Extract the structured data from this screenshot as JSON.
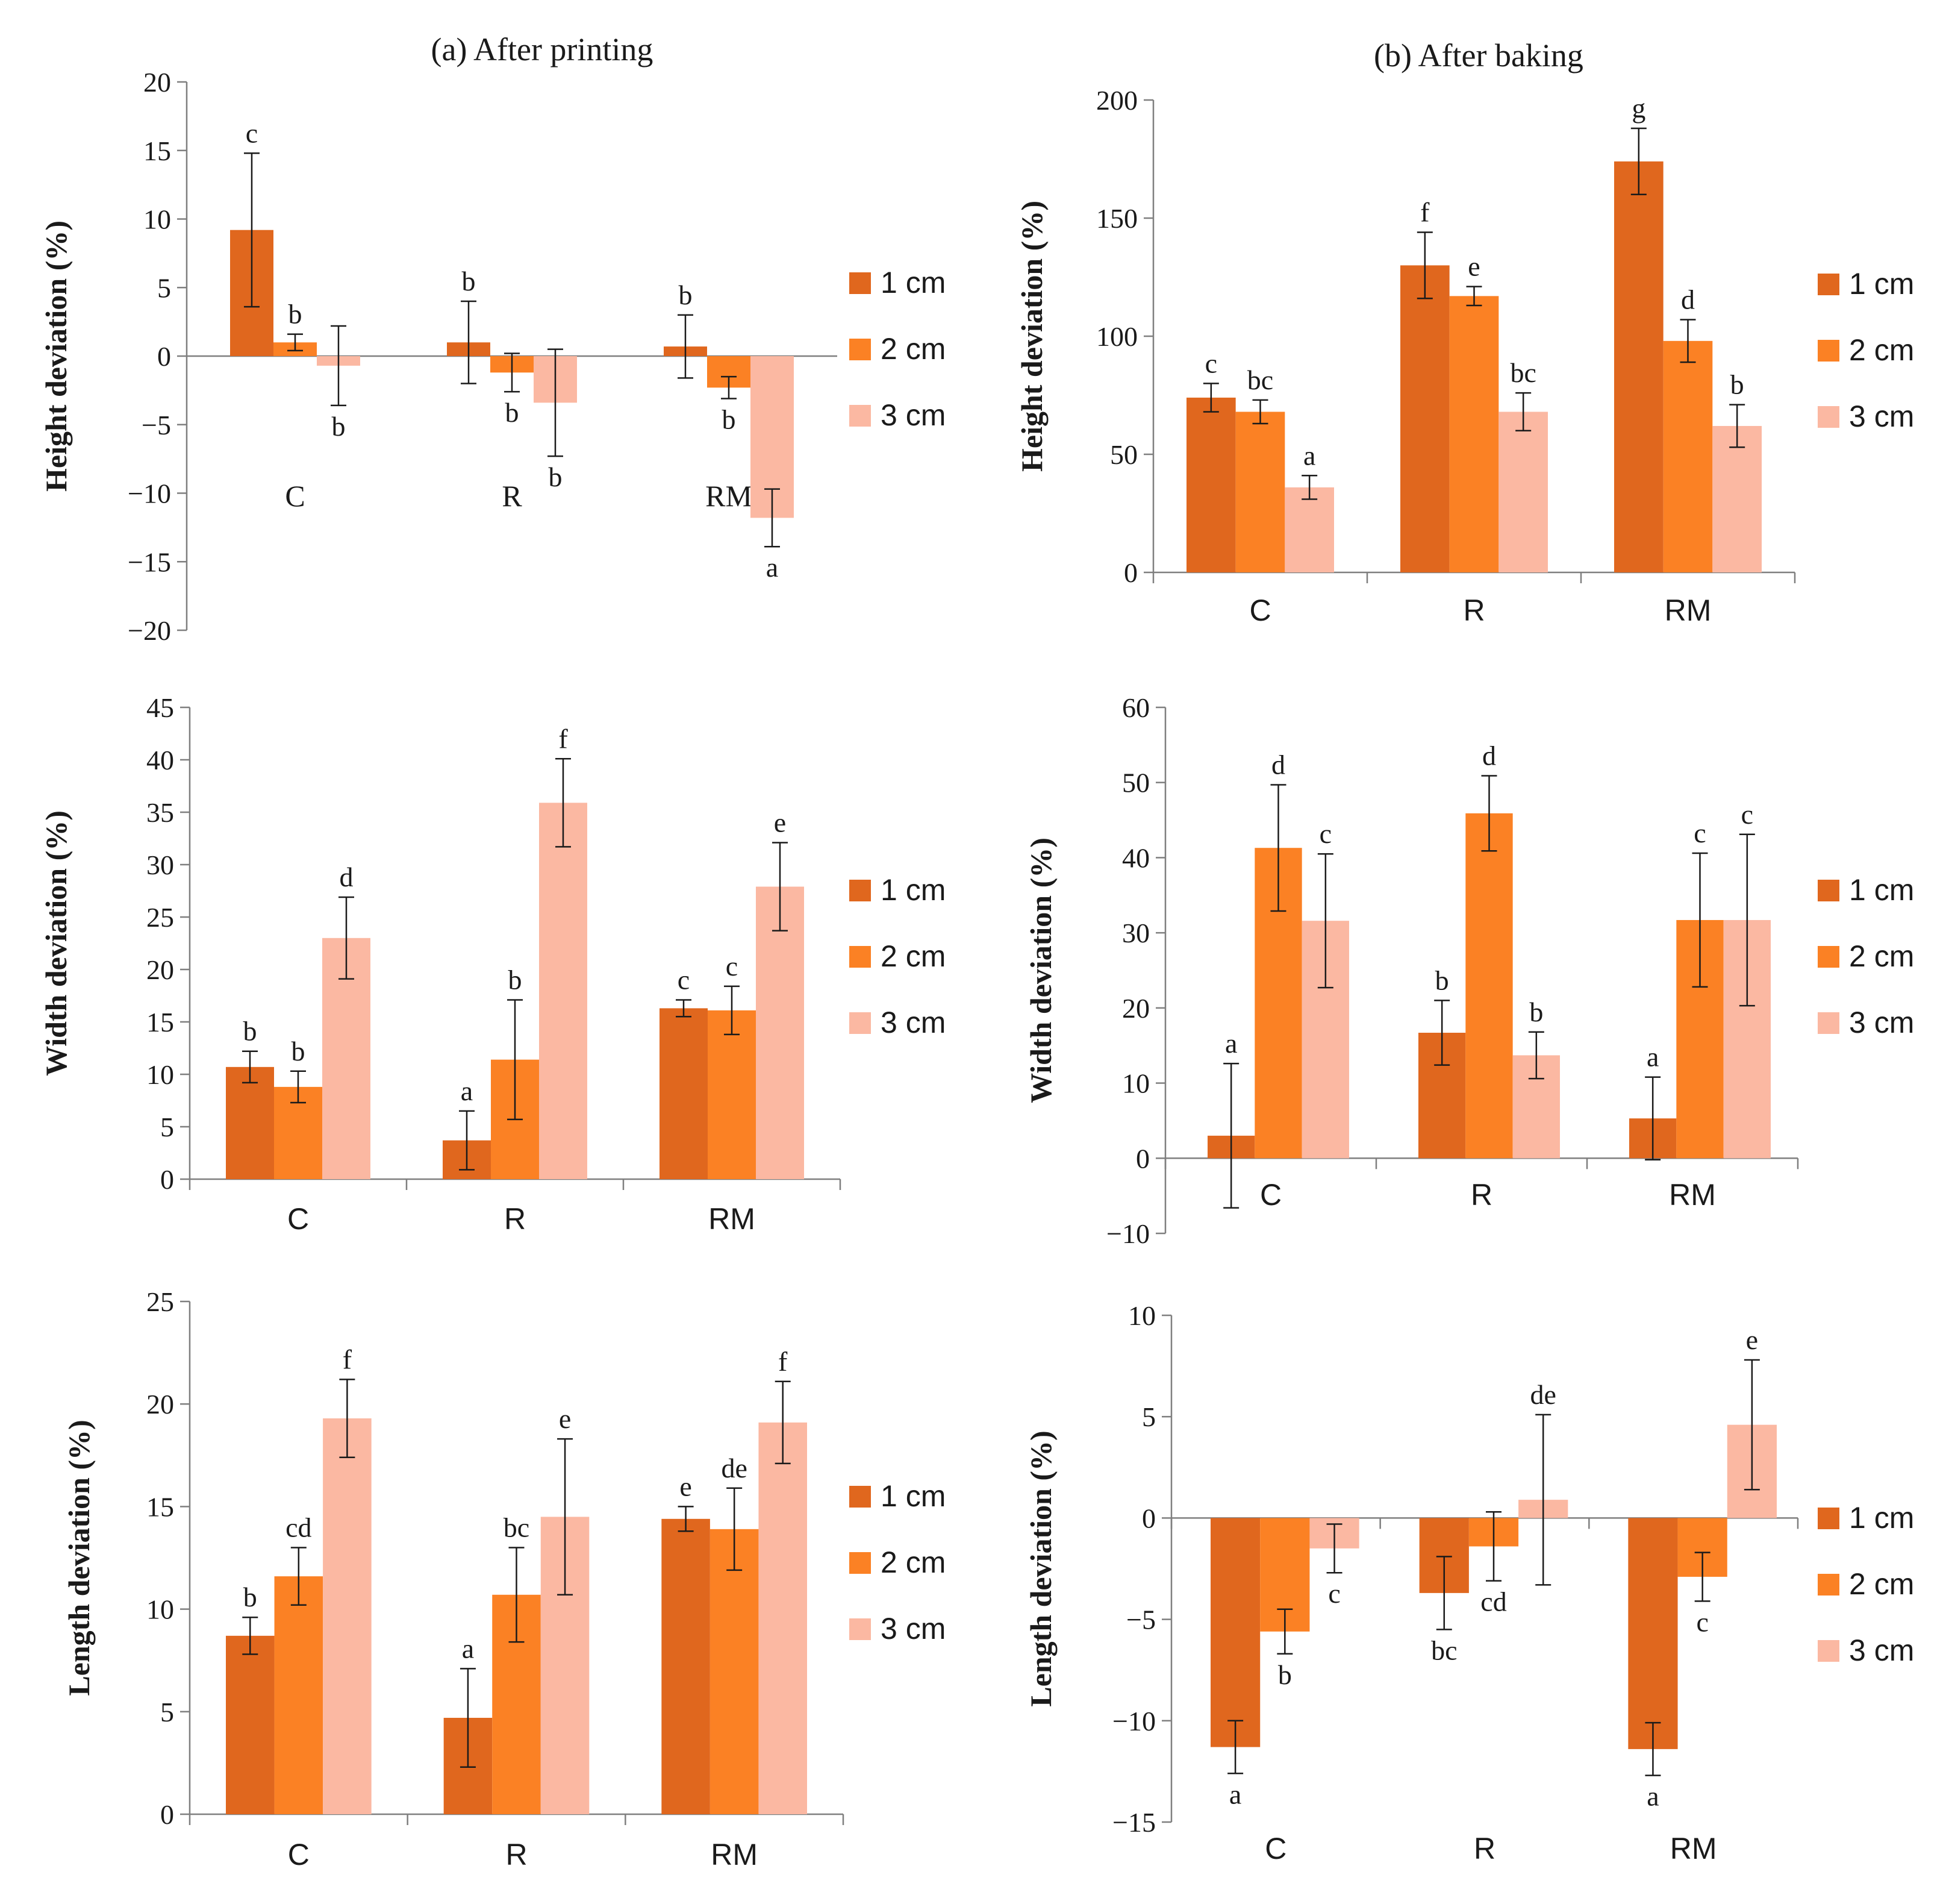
{
  "figure": {
    "col_titles": [
      "(a) After printing",
      "(b) After baking"
    ],
    "legend_labels": [
      "1 cm",
      "2 cm",
      "3 cm"
    ],
    "colors": {
      "series_1cm": "#E0671E",
      "series_2cm": "#FB8124",
      "series_3cm": "#FBB8A2",
      "axis": "#7f7f7f",
      "text": "#1a1a1a"
    }
  },
  "chart_data": [
    {
      "type": "bar",
      "panel": "a-height",
      "ylabel": "Height deviation (%)",
      "ylim": [
        -20,
        20
      ],
      "yticks": [
        -20,
        -15,
        -10,
        -5,
        0,
        5,
        10,
        15,
        20
      ],
      "categories": [
        "C",
        "R",
        "RM"
      ],
      "category_label_position": "inside",
      "series": [
        {
          "name": "1 cm",
          "values": [
            9.2,
            1.0,
            0.7
          ],
          "errors": [
            5.6,
            3.0,
            2.3
          ],
          "letters": [
            "c",
            "b",
            "b"
          ]
        },
        {
          "name": "2 cm",
          "values": [
            1.0,
            -1.2,
            -2.3
          ],
          "errors": [
            0.6,
            1.4,
            0.8
          ],
          "letters": [
            "b",
            "b",
            "b"
          ]
        },
        {
          "name": "3 cm",
          "values": [
            -0.7,
            -3.4,
            -11.8
          ],
          "errors": [
            2.9,
            3.9,
            2.1
          ],
          "letters": [
            "b",
            "b",
            "a"
          ]
        }
      ]
    },
    {
      "type": "bar",
      "panel": "b-height",
      "ylabel": "Height deviation (%)",
      "ylim": [
        0,
        200
      ],
      "yticks": [
        0,
        50,
        100,
        150,
        200
      ],
      "categories": [
        "C",
        "R",
        "RM"
      ],
      "category_label_position": "below",
      "series": [
        {
          "name": "1 cm",
          "values": [
            74,
            130,
            174
          ],
          "errors": [
            6,
            14,
            14
          ],
          "letters": [
            "c",
            "f",
            "g"
          ]
        },
        {
          "name": "2 cm",
          "values": [
            68,
            117,
            98
          ],
          "errors": [
            5,
            4,
            9
          ],
          "letters": [
            "bc",
            "e",
            "d"
          ]
        },
        {
          "name": "3 cm",
          "values": [
            36,
            68,
            62
          ],
          "errors": [
            5,
            8,
            9
          ],
          "letters": [
            "a",
            "bc",
            "b"
          ]
        }
      ]
    },
    {
      "type": "bar",
      "panel": "a-width",
      "ylabel": "Width deviation (%)",
      "ylim": [
        0,
        45
      ],
      "yticks": [
        0,
        5,
        10,
        15,
        20,
        25,
        30,
        35,
        40,
        45
      ],
      "categories": [
        "C",
        "R",
        "RM"
      ],
      "category_label_position": "below",
      "series": [
        {
          "name": "1 cm",
          "values": [
            10.7,
            3.7,
            16.3
          ],
          "errors": [
            1.5,
            2.8,
            0.8
          ],
          "letters": [
            "b",
            "a",
            "c"
          ]
        },
        {
          "name": "2 cm",
          "values": [
            8.8,
            11.4,
            16.1
          ],
          "errors": [
            1.5,
            5.7,
            2.3
          ],
          "letters": [
            "b",
            "b",
            "c"
          ]
        },
        {
          "name": "3 cm",
          "values": [
            23.0,
            35.9,
            27.9
          ],
          "errors": [
            3.9,
            4.2,
            4.2
          ],
          "letters": [
            "d",
            "f",
            "e"
          ]
        }
      ]
    },
    {
      "type": "bar",
      "panel": "b-width",
      "ylabel": "Width deviation (%)",
      "ylim": [
        -10,
        60
      ],
      "yticks": [
        -10,
        0,
        10,
        20,
        30,
        40,
        50,
        60
      ],
      "categories": [
        "C",
        "R",
        "RM"
      ],
      "category_label_position": "below",
      "series": [
        {
          "name": "1 cm",
          "values": [
            3.0,
            16.7,
            5.3
          ],
          "errors": [
            9.6,
            4.3,
            5.5
          ],
          "letters": [
            "a",
            "b",
            "a"
          ]
        },
        {
          "name": "2 cm",
          "values": [
            41.3,
            45.9,
            31.7
          ],
          "errors": [
            8.4,
            5.0,
            8.9
          ],
          "letters": [
            "d",
            "d",
            "c"
          ]
        },
        {
          "name": "3 cm",
          "values": [
            31.6,
            13.7,
            31.7
          ],
          "errors": [
            8.9,
            3.1,
            11.4
          ],
          "letters": [
            "c",
            "b",
            "c"
          ]
        }
      ]
    },
    {
      "type": "bar",
      "panel": "a-length",
      "ylabel": "Length deviation (%)",
      "ylim": [
        0,
        25
      ],
      "yticks": [
        0,
        5,
        10,
        15,
        20,
        25
      ],
      "categories": [
        "C",
        "R",
        "RM"
      ],
      "category_label_position": "below",
      "series": [
        {
          "name": "1 cm",
          "values": [
            8.7,
            4.7,
            14.4
          ],
          "errors": [
            0.9,
            2.4,
            0.6
          ],
          "letters": [
            "b",
            "a",
            "e"
          ]
        },
        {
          "name": "2 cm",
          "values": [
            11.6,
            10.7,
            13.9
          ],
          "errors": [
            1.4,
            2.3,
            2.0
          ],
          "letters": [
            "cd",
            "bc",
            "de"
          ]
        },
        {
          "name": "3 cm",
          "values": [
            19.3,
            14.5,
            19.1
          ],
          "errors": [
            1.9,
            3.8,
            2.0
          ],
          "letters": [
            "f",
            "e",
            "f"
          ]
        }
      ]
    },
    {
      "type": "bar",
      "panel": "b-length",
      "ylabel": "Length deviation (%)",
      "ylim": [
        -15,
        10
      ],
      "yticks": [
        -15,
        -10,
        -5,
        0,
        5,
        10
      ],
      "categories": [
        "C",
        "R",
        "RM"
      ],
      "category_label_position": "below",
      "series": [
        {
          "name": "1 cm",
          "values": [
            -11.3,
            -3.7,
            -11.4
          ],
          "errors": [
            1.3,
            1.8,
            1.3
          ],
          "letters": [
            "a",
            "bc",
            "a"
          ]
        },
        {
          "name": "2 cm",
          "values": [
            -5.6,
            -1.4,
            -2.9
          ],
          "errors": [
            1.1,
            1.7,
            1.2
          ],
          "letters": [
            "b",
            "cd",
            "c"
          ]
        },
        {
          "name": "3 cm",
          "values": [
            -1.5,
            0.9,
            4.6
          ],
          "errors": [
            1.2,
            4.2,
            3.2
          ],
          "letters": [
            "c",
            "de",
            "e"
          ]
        }
      ]
    }
  ]
}
